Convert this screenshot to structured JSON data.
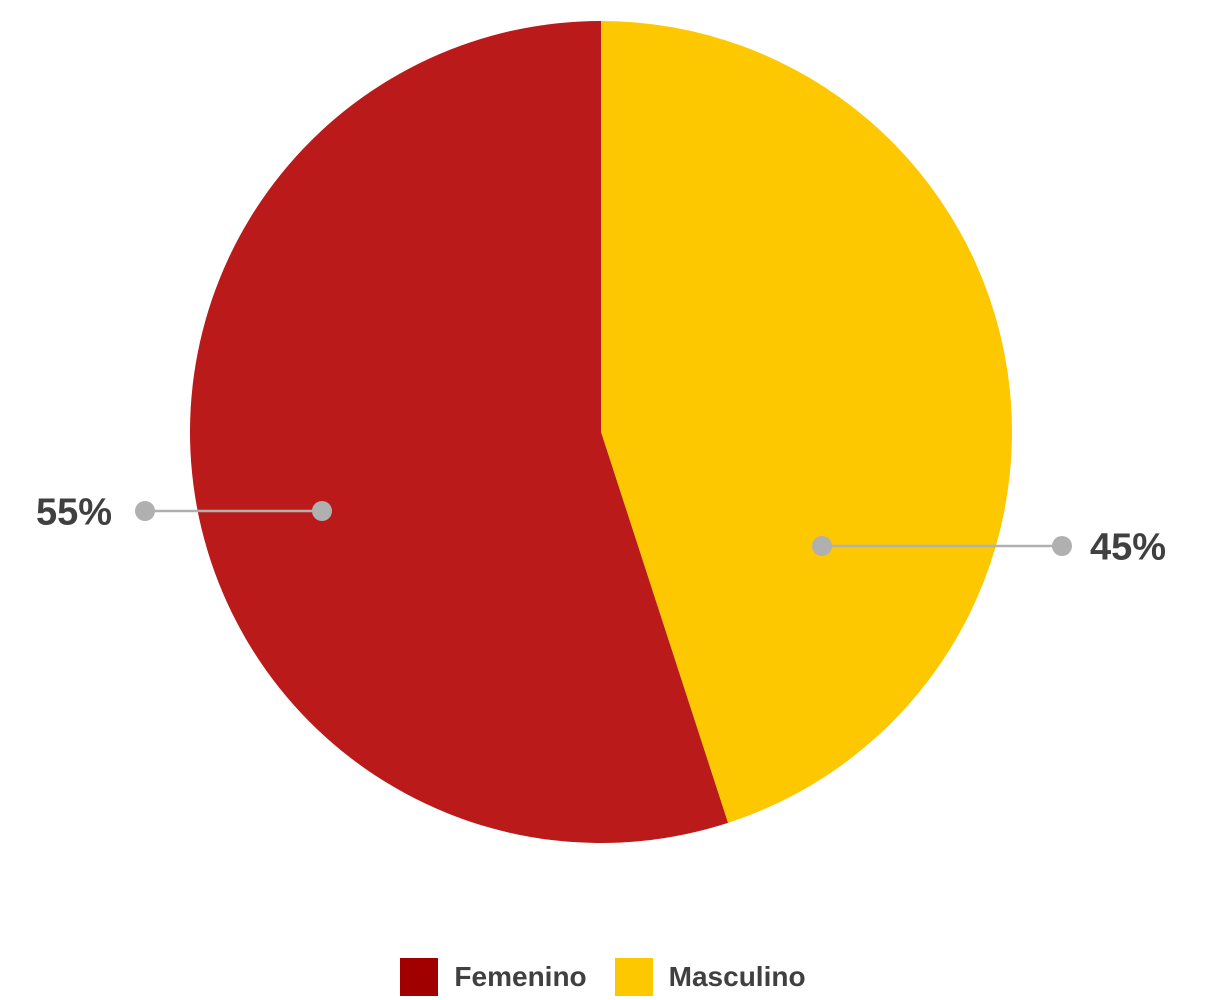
{
  "chart_data": {
    "type": "pie",
    "title": "",
    "categories": [
      "Femenino",
      "Masculino"
    ],
    "values": [
      55,
      45
    ],
    "labels": [
      "55%",
      "45%"
    ],
    "colors": [
      "#BA1A19",
      "#FEC800"
    ],
    "legend_colors": [
      "#A00000",
      "#FEC800"
    ],
    "legend_position": "bottom"
  },
  "legend": {
    "items": [
      {
        "label": "Femenino",
        "color": "#A00000"
      },
      {
        "label": "Masculino",
        "color": "#FEC800"
      }
    ]
  }
}
